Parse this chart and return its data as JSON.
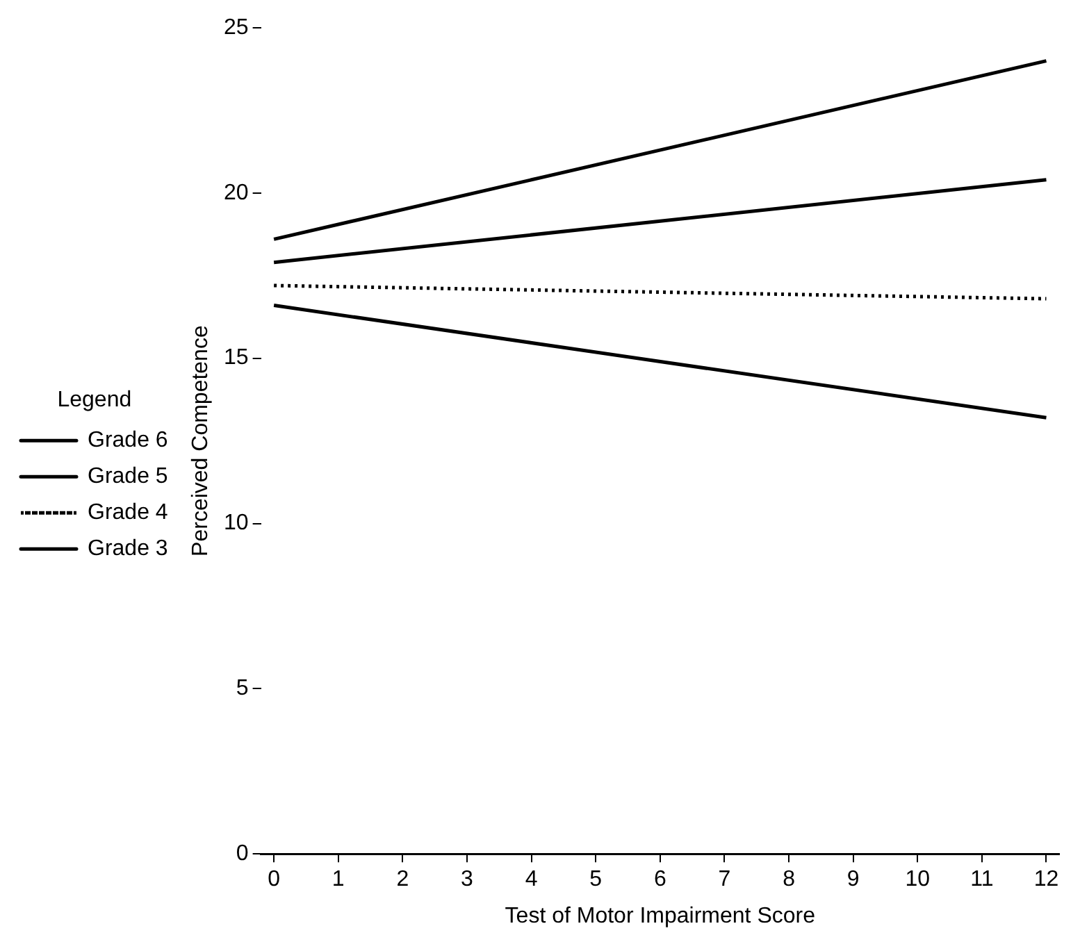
{
  "chart_data": {
    "type": "line",
    "xlabel": "Test of Motor Impairment Score",
    "ylabel": "Perceived Competence",
    "legend_title": "Legend",
    "x": [
      0,
      12
    ],
    "series": [
      {
        "name": "Grade 6",
        "color": "#000000",
        "values": [
          18.6,
          24.0
        ]
      },
      {
        "name": "Grade 5",
        "color": "#000000",
        "values": [
          17.9,
          20.4
        ]
      },
      {
        "name": "Grade 4",
        "color": "#000000",
        "values": [
          17.2,
          16.8
        ],
        "line_style": "dotted"
      },
      {
        "name": "Grade 3",
        "color": "#000000",
        "values": [
          16.6,
          13.2
        ]
      }
    ],
    "xlim": [
      -0.2,
      12.2
    ],
    "xticks": [
      0,
      1,
      2,
      3,
      4,
      5,
      6,
      7,
      8,
      9,
      10,
      11,
      12
    ],
    "ylim": [
      0,
      25
    ],
    "yticks": [
      0,
      5,
      10,
      15,
      20,
      25
    ],
    "grid": false,
    "legend": "left",
    "marker": "none",
    "line_style": "solid"
  }
}
